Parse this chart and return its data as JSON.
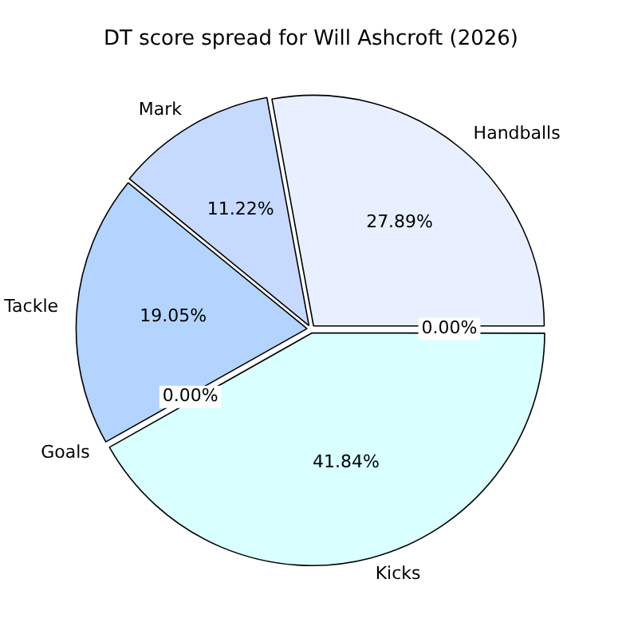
{
  "chart_data": {
    "type": "pie",
    "title": "DT score spread for Will Ashcroft (2026)",
    "categories": [
      "Handballs",
      "Mark",
      "Tackle",
      "Goals",
      "Kicks",
      null
    ],
    "values": [
      27.89,
      11.22,
      19.05,
      0,
      41.84,
      0
    ],
    "colors": [
      "#e8f0ff",
      "#c6d9ff",
      "#b3d4ff",
      "#b3d4ff",
      "#d9ffff",
      "#e8f0ff"
    ],
    "value_labels": [
      "27.89%",
      "11.22%",
      "19.05%",
      "0.00%",
      "41.84%",
      "0.00%"
    ],
    "legend": false
  }
}
